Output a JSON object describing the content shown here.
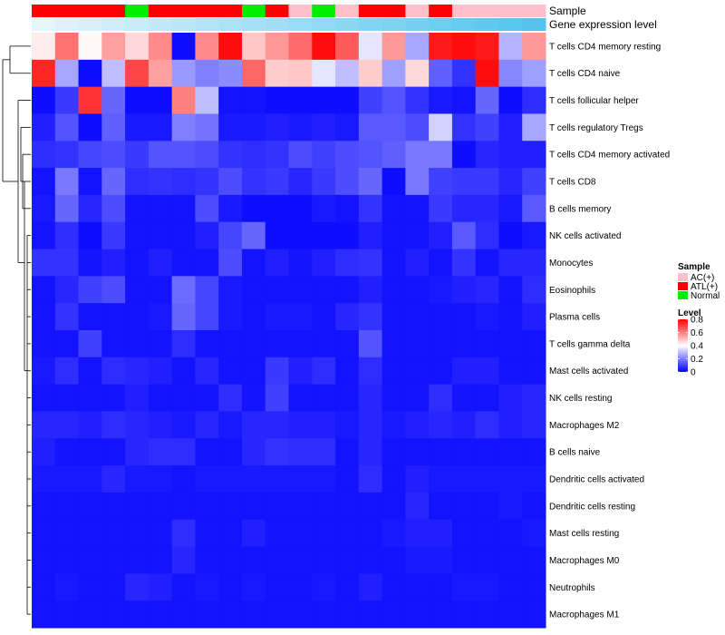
{
  "chart_data": {
    "type": "heatmap",
    "title": "",
    "annotation_labels": [
      "Sample",
      "Gene expression level"
    ],
    "sample_groups": [
      "ATL(+)",
      "ATL(+)",
      "ATL(+)",
      "ATL(+)",
      "Normal",
      "ATL(+)",
      "ATL(+)",
      "ATL(+)",
      "ATL(+)",
      "Normal",
      "ATL(+)",
      "AC(+)",
      "Normal",
      "AC(+)",
      "ATL(+)",
      "ATL(+)",
      "AC(+)",
      "ATL(+)",
      "AC(+)",
      "AC(+)",
      "AC(+)",
      "AC(+)"
    ],
    "expression_level": [
      0.02,
      0.07,
      0.11,
      0.16,
      0.2,
      0.25,
      0.3,
      0.34,
      0.39,
      0.43,
      0.48,
      0.52,
      0.57,
      0.61,
      0.66,
      0.7,
      0.75,
      0.8,
      0.84,
      0.89,
      0.93,
      0.98
    ],
    "rows": [
      "T cells CD4 memory resting",
      "T cells CD4 naive",
      "T cells follicular helper",
      "T cells regulatory  Tregs",
      "T cells CD4 memory activated",
      "T cells CD8",
      "B cells memory",
      "NK cells activated",
      "Monocytes",
      "Eosinophils",
      "Plasma cells",
      "T cells gamma delta",
      "Mast cells activated",
      "NK cells resting",
      "Macrophages M2",
      "B cells naive",
      "Dendritic cells activated",
      "Dendritic cells resting",
      "Mast cells resting",
      "Macrophages M0",
      "Neutrophils",
      "Macrophages M1"
    ],
    "values": [
      [
        0.43,
        0.62,
        0.41,
        0.55,
        0.46,
        0.58,
        0.02,
        0.58,
        0.78,
        0.49,
        0.56,
        0.63,
        0.78,
        0.66,
        0.36,
        0.56,
        0.26,
        0.76,
        0.78,
        0.76,
        0.28,
        0.56
      ],
      [
        0.74,
        0.26,
        0.02,
        0.3,
        0.69,
        0.55,
        0.24,
        0.2,
        0.22,
        0.64,
        0.48,
        0.49,
        0.36,
        0.3,
        0.48,
        0.25,
        0.46,
        0.15,
        0.08,
        0.78,
        0.21,
        0.25
      ],
      [
        0.02,
        0.09,
        0.72,
        0.16,
        0.02,
        0.02,
        0.6,
        0.3,
        0.03,
        0.03,
        0.02,
        0.02,
        0.02,
        0.02,
        0.1,
        0.13,
        0.08,
        0.04,
        0.03,
        0.16,
        0.02,
        0.07
      ],
      [
        0.05,
        0.13,
        0.02,
        0.15,
        0.04,
        0.04,
        0.2,
        0.18,
        0.04,
        0.04,
        0.05,
        0.04,
        0.05,
        0.04,
        0.14,
        0.14,
        0.12,
        0.33,
        0.08,
        0.1,
        0.05,
        0.26
      ],
      [
        0.07,
        0.08,
        0.11,
        0.12,
        0.09,
        0.13,
        0.13,
        0.12,
        0.08,
        0.07,
        0.08,
        0.12,
        0.1,
        0.12,
        0.13,
        0.15,
        0.19,
        0.19,
        0.02,
        0.06,
        0.05,
        0.05
      ],
      [
        0.03,
        0.19,
        0.03,
        0.16,
        0.07,
        0.08,
        0.07,
        0.08,
        0.12,
        0.08,
        0.09,
        0.06,
        0.09,
        0.12,
        0.16,
        0.02,
        0.19,
        0.1,
        0.09,
        0.09,
        0.06,
        0.1
      ],
      [
        0.04,
        0.16,
        0.06,
        0.12,
        0.03,
        0.03,
        0.03,
        0.12,
        0.04,
        0.02,
        0.02,
        0.02,
        0.04,
        0.03,
        0.08,
        0.03,
        0.03,
        0.09,
        0.06,
        0.06,
        0.04,
        0.14
      ],
      [
        0.03,
        0.07,
        0.02,
        0.09,
        0.03,
        0.03,
        0.03,
        0.05,
        0.11,
        0.16,
        0.02,
        0.02,
        0.02,
        0.02,
        0.05,
        0.03,
        0.03,
        0.05,
        0.14,
        0.07,
        0.02,
        0.04
      ],
      [
        0.08,
        0.08,
        0.03,
        0.05,
        0.03,
        0.05,
        0.03,
        0.03,
        0.12,
        0.03,
        0.05,
        0.03,
        0.05,
        0.07,
        0.08,
        0.03,
        0.05,
        0.03,
        0.08,
        0.03,
        0.06,
        0.06
      ],
      [
        0.03,
        0.06,
        0.1,
        0.12,
        0.03,
        0.03,
        0.17,
        0.11,
        0.04,
        0.03,
        0.03,
        0.03,
        0.03,
        0.03,
        0.05,
        0.03,
        0.03,
        0.04,
        0.05,
        0.06,
        0.03,
        0.07
      ],
      [
        0.03,
        0.08,
        0.03,
        0.03,
        0.03,
        0.04,
        0.16,
        0.11,
        0.04,
        0.03,
        0.04,
        0.04,
        0.03,
        0.06,
        0.08,
        0.03,
        0.03,
        0.03,
        0.03,
        0.04,
        0.03,
        0.05
      ],
      [
        0.03,
        0.03,
        0.1,
        0.03,
        0.03,
        0.03,
        0.07,
        0.03,
        0.03,
        0.03,
        0.03,
        0.03,
        0.03,
        0.03,
        0.13,
        0.03,
        0.03,
        0.03,
        0.03,
        0.03,
        0.03,
        0.03
      ],
      [
        0.04,
        0.07,
        0.03,
        0.07,
        0.06,
        0.05,
        0.03,
        0.06,
        0.03,
        0.03,
        0.09,
        0.05,
        0.07,
        0.03,
        0.07,
        0.03,
        0.03,
        0.03,
        0.05,
        0.05,
        0.03,
        0.03
      ],
      [
        0.03,
        0.03,
        0.03,
        0.03,
        0.05,
        0.03,
        0.03,
        0.03,
        0.07,
        0.03,
        0.1,
        0.03,
        0.03,
        0.03,
        0.06,
        0.03,
        0.03,
        0.07,
        0.03,
        0.03,
        0.05,
        0.06
      ],
      [
        0.06,
        0.06,
        0.05,
        0.07,
        0.06,
        0.05,
        0.04,
        0.06,
        0.04,
        0.06,
        0.06,
        0.05,
        0.05,
        0.04,
        0.06,
        0.04,
        0.05,
        0.06,
        0.05,
        0.07,
        0.05,
        0.06
      ],
      [
        0.05,
        0.03,
        0.03,
        0.03,
        0.06,
        0.07,
        0.07,
        0.03,
        0.03,
        0.06,
        0.08,
        0.07,
        0.07,
        0.03,
        0.06,
        0.03,
        0.03,
        0.03,
        0.03,
        0.03,
        0.03,
        0.03
      ],
      [
        0.04,
        0.04,
        0.04,
        0.06,
        0.04,
        0.04,
        0.03,
        0.04,
        0.04,
        0.04,
        0.04,
        0.04,
        0.04,
        0.03,
        0.07,
        0.03,
        0.05,
        0.04,
        0.04,
        0.04,
        0.04,
        0.04
      ],
      [
        0.03,
        0.03,
        0.03,
        0.03,
        0.03,
        0.03,
        0.03,
        0.03,
        0.03,
        0.03,
        0.03,
        0.03,
        0.03,
        0.03,
        0.03,
        0.03,
        0.06,
        0.03,
        0.03,
        0.03,
        0.04,
        0.03
      ],
      [
        0.03,
        0.03,
        0.03,
        0.03,
        0.03,
        0.03,
        0.07,
        0.03,
        0.03,
        0.05,
        0.03,
        0.03,
        0.03,
        0.03,
        0.03,
        0.04,
        0.05,
        0.05,
        0.03,
        0.03,
        0.03,
        0.04
      ],
      [
        0.03,
        0.03,
        0.03,
        0.03,
        0.03,
        0.03,
        0.06,
        0.03,
        0.03,
        0.03,
        0.03,
        0.03,
        0.03,
        0.03,
        0.03,
        0.03,
        0.04,
        0.04,
        0.03,
        0.03,
        0.03,
        0.03
      ],
      [
        0.03,
        0.04,
        0.03,
        0.03,
        0.06,
        0.05,
        0.03,
        0.04,
        0.03,
        0.04,
        0.03,
        0.03,
        0.04,
        0.03,
        0.05,
        0.03,
        0.03,
        0.03,
        0.04,
        0.04,
        0.03,
        0.03
      ],
      [
        0.03,
        0.03,
        0.03,
        0.03,
        0.03,
        0.03,
        0.03,
        0.03,
        0.03,
        0.03,
        0.03,
        0.03,
        0.03,
        0.03,
        0.03,
        0.03,
        0.03,
        0.03,
        0.03,
        0.03,
        0.03,
        0.03
      ]
    ],
    "dendrogram_merges": [
      [
        0,
        1,
        0.9
      ],
      [
        2,
        3,
        0.4
      ],
      [
        [
          2,
          3
        ],
        4,
        0.3
      ],
      [
        [
          2,
          3,
          4
        ],
        5,
        0.25
      ],
      [
        [
          2,
          3,
          4,
          5
        ],
        6,
        0.22
      ],
      [
        [
          2,
          3,
          4,
          5,
          6
        ],
        "rest",
        0.2
      ]
    ],
    "color_scale": {
      "min": 0,
      "max": 0.8,
      "low_color": "#0000ff",
      "mid_color": "#ffffff",
      "high_color": "#ff0000",
      "mid_value": 0.4
    },
    "legends": {
      "sample": {
        "title": "Sample",
        "entries": [
          {
            "label": "AC(+)",
            "color": "#ffc0cb"
          },
          {
            "label": "ATL(+)",
            "color": "#ff0000"
          },
          {
            "label": "Normal",
            "color": "#00ee00"
          }
        ]
      },
      "level": {
        "title": "Level",
        "ticks": [
          "0.8",
          "0.6",
          "0.4",
          "0.2",
          "0"
        ],
        "tick_values": [
          0.8,
          0.6,
          0.4,
          0.2,
          0
        ]
      }
    },
    "expression_colors": {
      "low": "#e8f6fc",
      "high": "#4fc3ee"
    }
  }
}
